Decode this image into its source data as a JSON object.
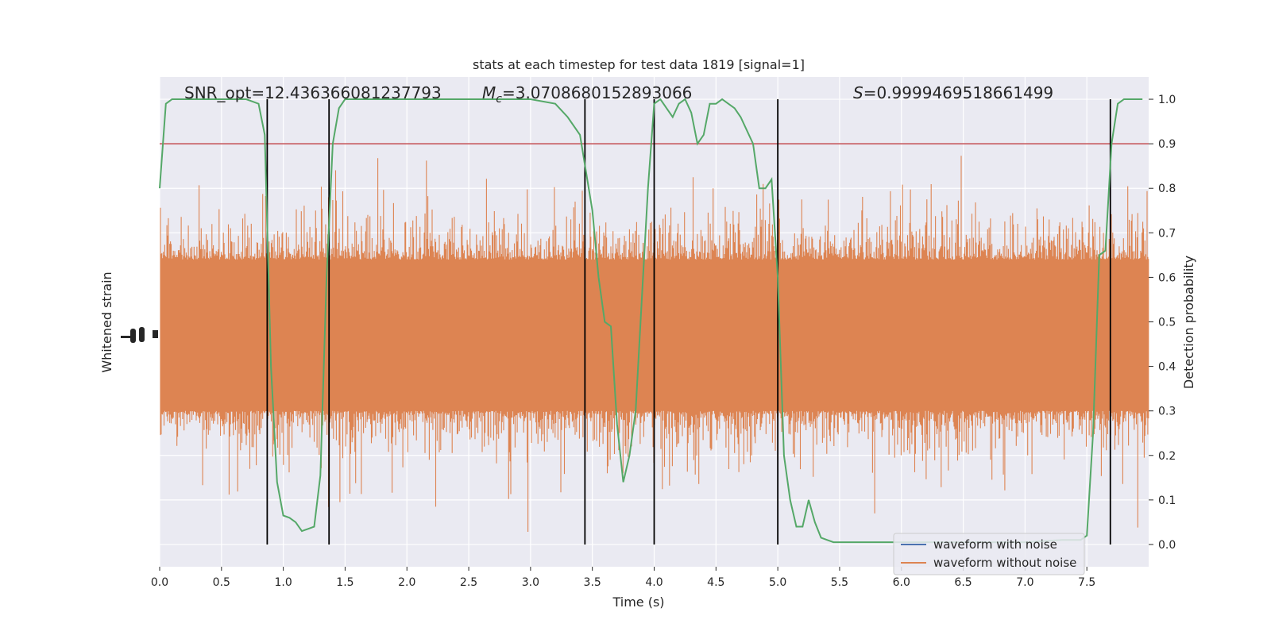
{
  "chart_data": {
    "type": "line",
    "title": "stats at each timestep for test data 1819 [signal=1]",
    "xlabel": "Time (s)",
    "ylabel_left": "Whitened strain",
    "ylabel_right": "Detection probability",
    "xlim": [
      0.0,
      8.0
    ],
    "ylim_right": [
      -0.05,
      1.05
    ],
    "xticks": [
      "0.0",
      "0.5",
      "1.0",
      "1.5",
      "2.0",
      "2.5",
      "3.0",
      "3.5",
      "4.0",
      "4.5",
      "5.0",
      "5.5",
      "6.0",
      "6.5",
      "7.0",
      "7.5"
    ],
    "yticks_right": [
      "0.0",
      "0.1",
      "0.2",
      "0.3",
      "0.4",
      "0.5",
      "0.6",
      "0.7",
      "0.8",
      "0.9",
      "1.0"
    ],
    "grid": true,
    "legend_position": "lower right",
    "annotations": {
      "snr": "SNR_opt=12.436366081237793",
      "mc_symbol": "M",
      "mc_sub": "c",
      "mc_value": "=3.0708680152893066",
      "s_symbol": "S",
      "s_value": "=0.9999469518661499"
    },
    "threshold": 0.9,
    "vertical_lines": [
      0.87,
      1.37,
      3.44,
      4.0,
      5.0,
      7.69
    ],
    "series": [
      {
        "name": "waveform with noise",
        "color": "#4c72b0"
      },
      {
        "name": "waveform without noise",
        "color": "#dd8452"
      },
      {
        "color": "#55a868",
        "x": [
          0.0,
          0.05,
          0.1,
          0.15,
          0.2,
          0.3,
          0.5,
          0.7,
          0.8,
          0.85,
          0.9,
          0.95,
          1.0,
          1.05,
          1.1,
          1.15,
          1.2,
          1.25,
          1.3,
          1.35,
          1.4,
          1.45,
          1.5,
          1.6,
          1.8,
          2.0,
          2.5,
          3.0,
          3.2,
          3.3,
          3.4,
          3.5,
          3.55,
          3.6,
          3.65,
          3.7,
          3.75,
          3.8,
          3.85,
          3.9,
          3.95,
          4.0,
          4.05,
          4.1,
          4.15,
          4.2,
          4.25,
          4.3,
          4.35,
          4.4,
          4.45,
          4.5,
          4.55,
          4.6,
          4.65,
          4.7,
          4.75,
          4.8,
          4.85,
          4.9,
          4.95,
          5.0,
          5.05,
          5.1,
          5.15,
          5.2,
          5.25,
          5.3,
          5.35,
          5.4,
          5.45,
          5.5,
          5.55,
          5.6,
          5.65,
          5.7,
          5.8,
          5.9,
          6.0,
          7.0,
          7.3,
          7.4,
          7.45,
          7.5,
          7.55,
          7.6,
          7.65,
          7.7,
          7.75,
          7.8,
          7.85,
          7.9,
          7.95
        ],
        "values": [
          0.8,
          0.99,
          1.0,
          1.0,
          1.0,
          1.0,
          1.0,
          1.0,
          0.99,
          0.92,
          0.4,
          0.14,
          0.065,
          0.06,
          0.05,
          0.03,
          0.035,
          0.04,
          0.155,
          0.6,
          0.9,
          0.98,
          1.0,
          1.0,
          1.0,
          1.0,
          1.0,
          1.0,
          0.99,
          0.96,
          0.92,
          0.75,
          0.6,
          0.5,
          0.49,
          0.27,
          0.14,
          0.2,
          0.3,
          0.55,
          0.8,
          0.99,
          1.0,
          0.98,
          0.96,
          0.99,
          1.0,
          0.97,
          0.9,
          0.92,
          0.99,
          0.99,
          1.0,
          0.99,
          0.98,
          0.96,
          0.93,
          0.9,
          0.8,
          0.8,
          0.82,
          0.6,
          0.2,
          0.1,
          0.04,
          0.04,
          0.1,
          0.05,
          0.015,
          0.01,
          0.005,
          0.005,
          0.005,
          0.005,
          0.005,
          0.005,
          0.005,
          0.005,
          0.005,
          0.005,
          0.01,
          0.01,
          0.01,
          0.02,
          0.25,
          0.65,
          0.66,
          0.9,
          0.99,
          1.0,
          1.0,
          1.0,
          1.0
        ]
      }
    ]
  }
}
